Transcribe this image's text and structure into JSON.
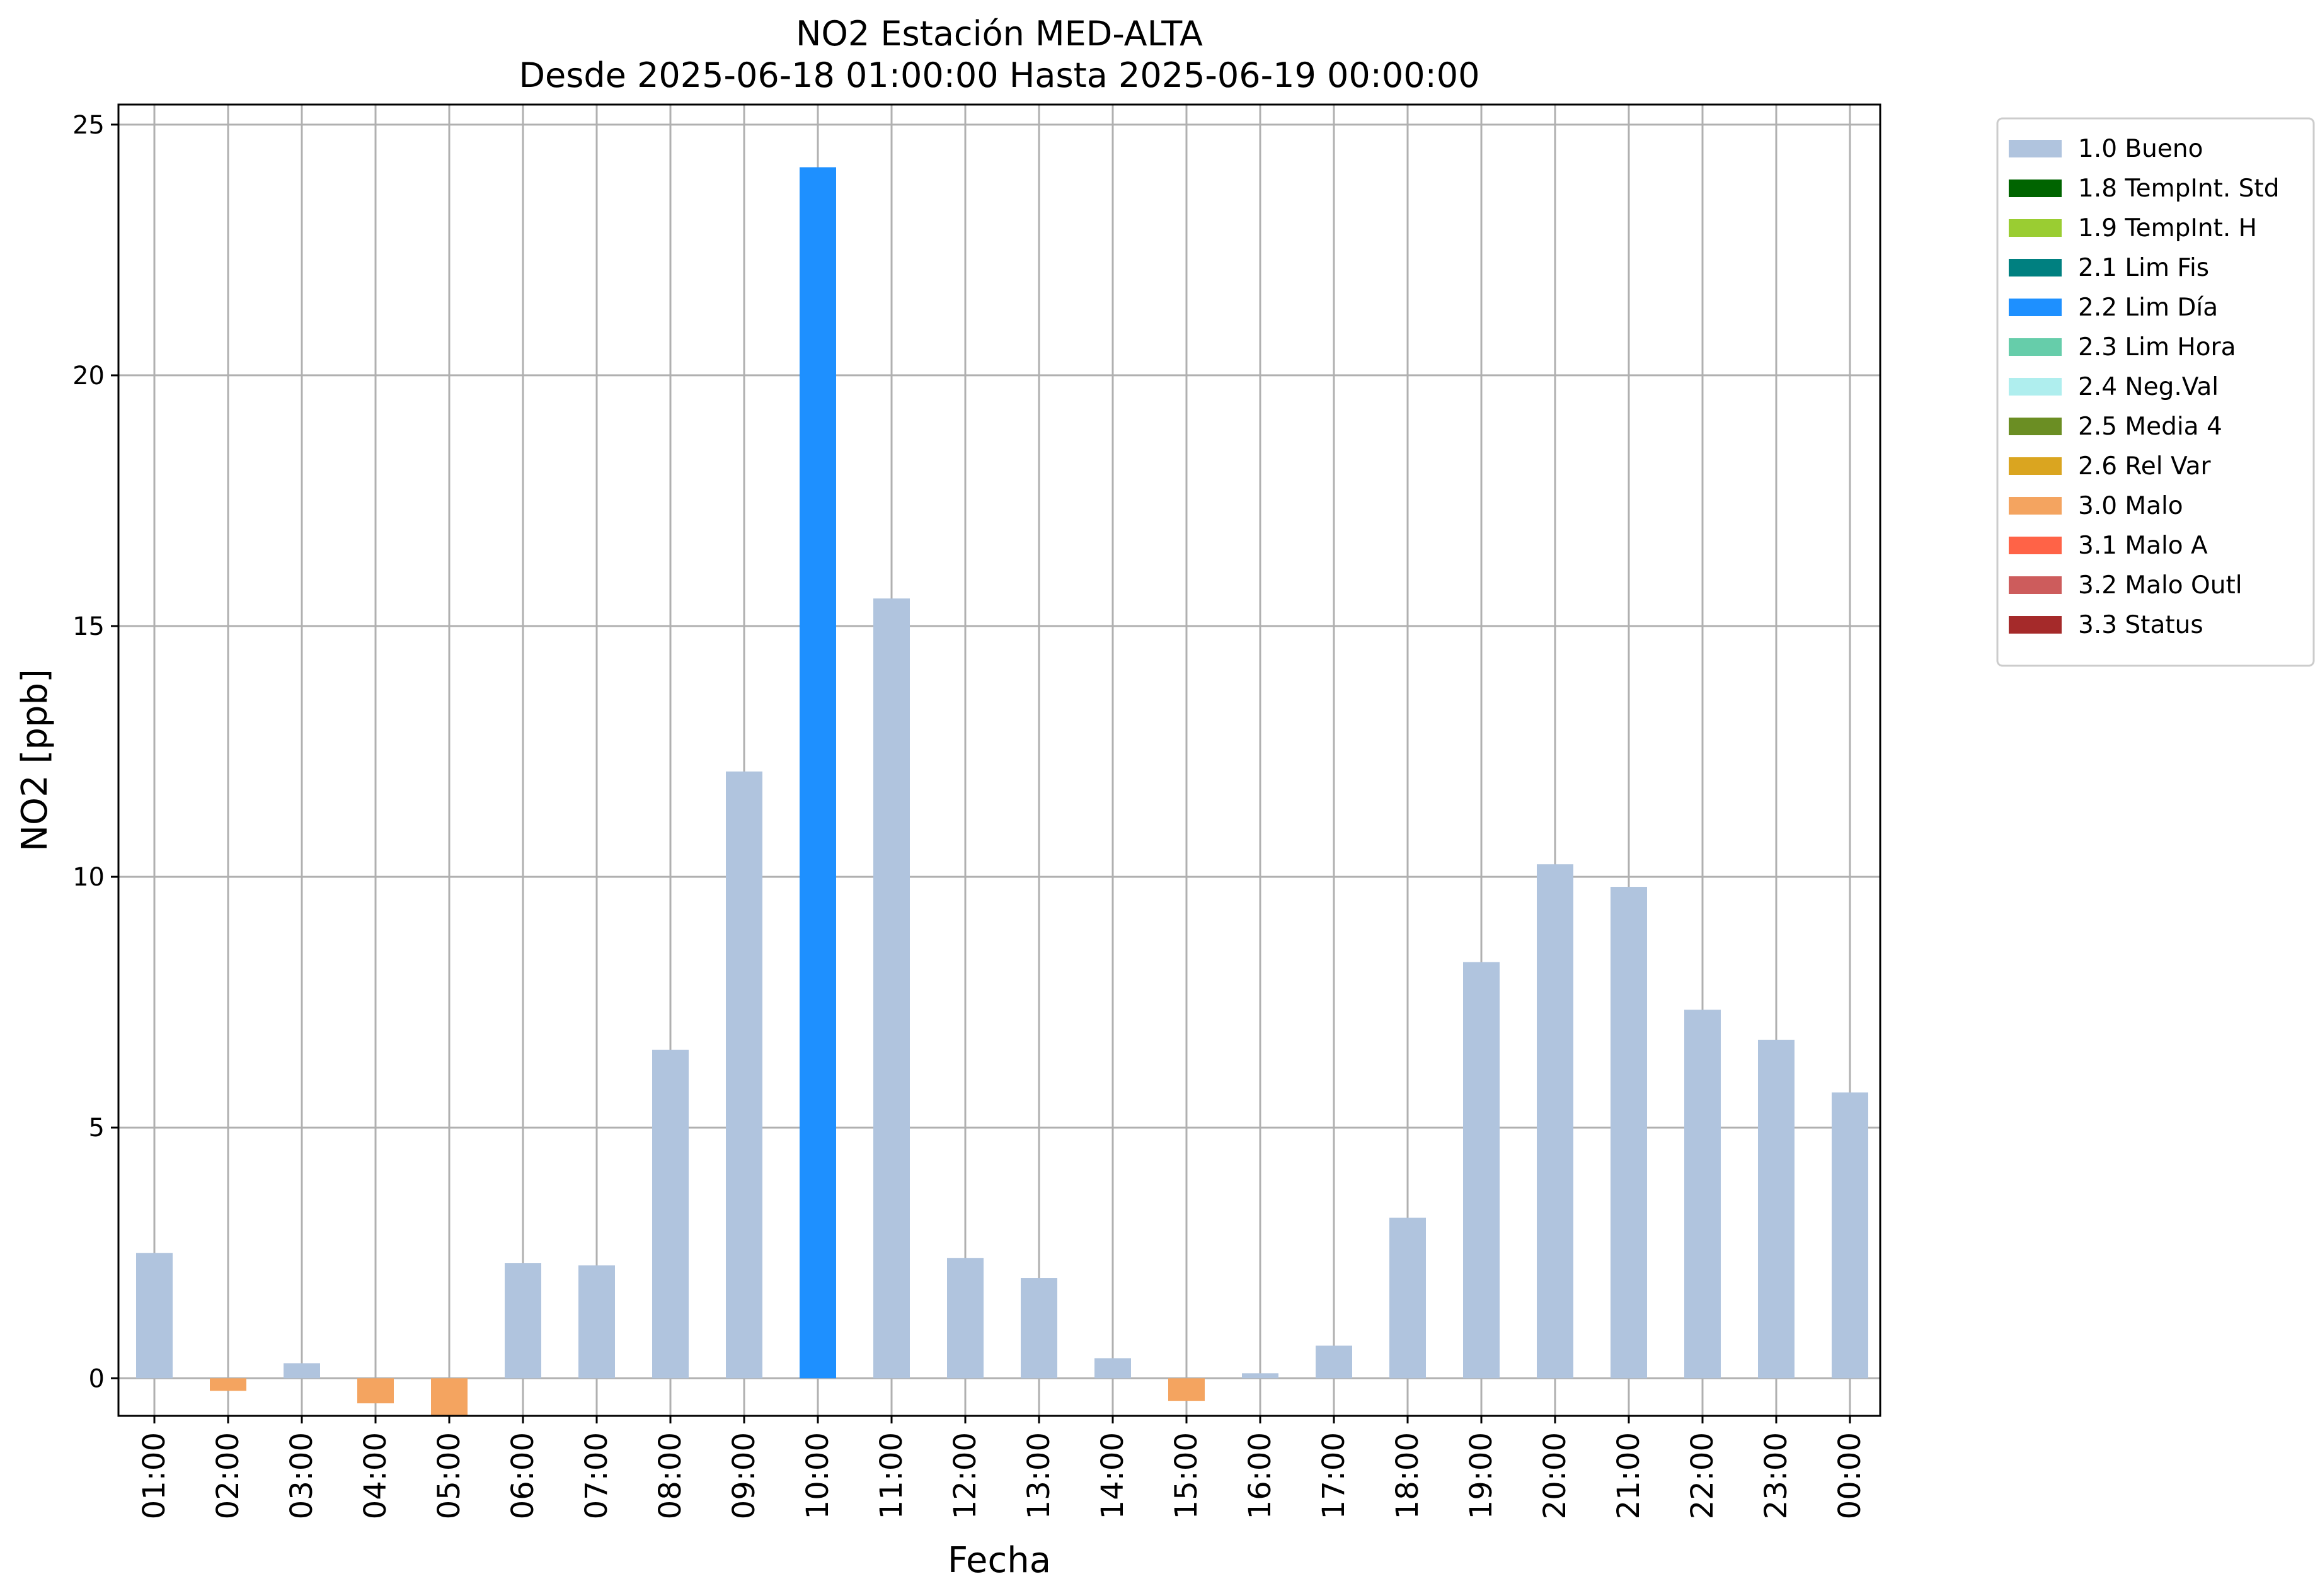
{
  "chart_data": {
    "type": "bar",
    "title": "NO2 Estación MED-ALTA",
    "subtitle": "Desde 2025-06-18 01:00:00 Hasta 2025-06-19 00:00:00",
    "xlabel": "Fecha",
    "ylabel": "NO2 [ppb]",
    "ylim": [
      -0.75,
      25.4
    ],
    "yticks": [
      0,
      5,
      10,
      15,
      20,
      25
    ],
    "grid": true,
    "legend_position": "outside-top-right",
    "categories": [
      "01:00",
      "02:00",
      "03:00",
      "04:00",
      "05:00",
      "06:00",
      "07:00",
      "08:00",
      "09:00",
      "10:00",
      "11:00",
      "12:00",
      "13:00",
      "14:00",
      "15:00",
      "16:00",
      "17:00",
      "18:00",
      "19:00",
      "20:00",
      "21:00",
      "22:00",
      "23:00",
      "00:00"
    ],
    "values": [
      2.5,
      -0.25,
      0.3,
      -0.5,
      -0.75,
      2.3,
      2.25,
      6.55,
      12.1,
      24.15,
      15.55,
      2.4,
      2.0,
      0.4,
      -0.45,
      0.1,
      0.65,
      3.2,
      8.3,
      10.25,
      9.8,
      7.35,
      6.75,
      5.7
    ],
    "flags": [
      "1.0 Bueno",
      "3.0 Malo",
      "1.0 Bueno",
      "3.0 Malo",
      "3.0 Malo",
      "1.0 Bueno",
      "1.0 Bueno",
      "1.0 Bueno",
      "1.0 Bueno",
      "2.2 Lim Día",
      "1.0 Bueno",
      "1.0 Bueno",
      "1.0 Bueno",
      "1.0 Bueno",
      "3.0 Malo",
      "1.0 Bueno",
      "1.0 Bueno",
      "1.0 Bueno",
      "1.0 Bueno",
      "1.0 Bueno",
      "1.0 Bueno",
      "1.0 Bueno",
      "1.0 Bueno",
      "1.0 Bueno"
    ],
    "legend": [
      {
        "label": "1.0 Bueno",
        "color": "#b0c4de"
      },
      {
        "label": "1.8 TempInt. Std",
        "color": "#006400"
      },
      {
        "label": "1.9 TempInt. H",
        "color": "#9acd32"
      },
      {
        "label": "2.1 Lim Fis",
        "color": "#008080"
      },
      {
        "label": "2.2 Lim Día",
        "color": "#1e90ff"
      },
      {
        "label": "2.3 Lim Hora",
        "color": "#66cdaa"
      },
      {
        "label": "2.4 Neg.Val",
        "color": "#afeeee"
      },
      {
        "label": "2.5 Media 4",
        "color": "#6b8e23"
      },
      {
        "label": "2.6 Rel Var",
        "color": "#daa520"
      },
      {
        "label": "3.0 Malo",
        "color": "#f4a460"
      },
      {
        "label": "3.1 Malo A",
        "color": "#ff6347"
      },
      {
        "label": "3.2 Malo Outl",
        "color": "#cd5c5c"
      },
      {
        "label": "3.3 Status",
        "color": "#a52a2a"
      }
    ]
  }
}
